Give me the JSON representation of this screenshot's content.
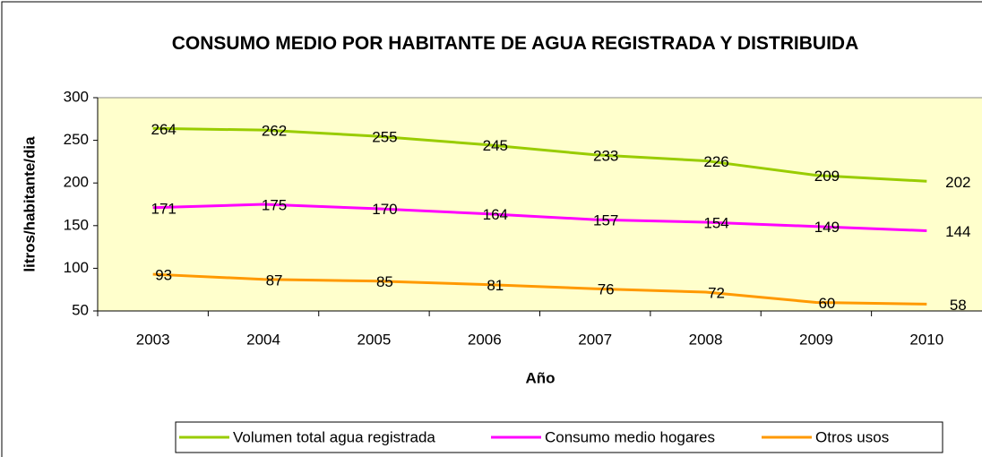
{
  "chart_data": {
    "type": "line",
    "title": "CONSUMO MEDIO POR HABITANTE DE AGUA REGISTRADA Y DISTRIBUIDA",
    "xlabel": "Año",
    "ylabel": "litros/habitante/dia",
    "categories": [
      "2003",
      "2004",
      "2005",
      "2006",
      "2007",
      "2008",
      "2009",
      "2010"
    ],
    "series": [
      {
        "name": "Volumen total agua registrada",
        "color": "#99cc00",
        "values": [
          264,
          262,
          255,
          245,
          233,
          226,
          209,
          202
        ]
      },
      {
        "name": "Consumo medio hogares",
        "color": "#ff00ff",
        "values": [
          171,
          175,
          170,
          164,
          157,
          154,
          149,
          144
        ]
      },
      {
        "name": "Otros usos",
        "color": "#ff9900",
        "values": [
          93,
          87,
          85,
          81,
          76,
          72,
          60,
          58
        ]
      }
    ],
    "ylim": [
      50,
      300
    ],
    "yticks": [
      50,
      100,
      150,
      200,
      250,
      300
    ],
    "plot_background": "#ffffcc",
    "legend": "bottom"
  }
}
